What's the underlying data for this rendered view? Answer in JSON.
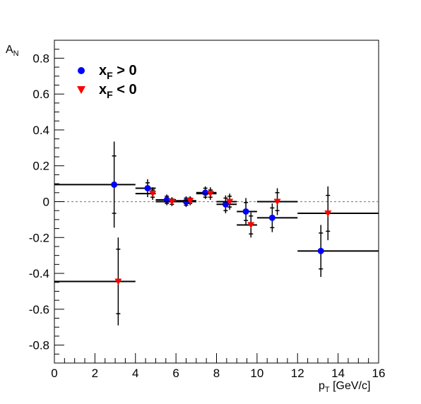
{
  "chart_data": {
    "type": "scatter",
    "title": "",
    "xlabel": {
      "main": "p",
      "sub": "T",
      "unit": " [GeV/c]"
    },
    "ylabel": {
      "main": "A",
      "sub": "N"
    },
    "xlim": [
      0,
      16
    ],
    "ylim": [
      -0.9,
      0.9
    ],
    "xticks": [
      0,
      2,
      4,
      6,
      8,
      10,
      12,
      14,
      16
    ],
    "xtick_labels": [
      "0",
      "2",
      "4",
      "6",
      "8",
      "10",
      "12",
      "14",
      "16"
    ],
    "yticks": [
      -0.8,
      -0.6,
      -0.4,
      -0.2,
      0,
      0.2,
      0.4,
      0.6,
      0.8
    ],
    "ytick_labels": [
      "-0.8",
      "-0.6",
      "-0.4",
      "-0.2",
      "0",
      "0.2",
      "0.4",
      "0.6",
      "0.8"
    ],
    "reference_line": {
      "y": 0,
      "style": "dotted",
      "color": "#888888"
    },
    "grid": false,
    "legend_position": "top-left",
    "series": [
      {
        "name": "x_F > 0",
        "legend": {
          "main": "x",
          "sub": "F",
          "rest": " > 0"
        },
        "marker": "circle",
        "color": "#0000ff",
        "points": [
          {
            "x": 2.95,
            "y": 0.095,
            "xlo": 0.0,
            "xhi": 4.0,
            "ystat": 0.16,
            "ysys": 0.24
          },
          {
            "x": 4.6,
            "y": 0.075,
            "xlo": 4.0,
            "xhi": 5.0,
            "ystat": 0.03,
            "ysys": 0.05
          },
          {
            "x": 5.55,
            "y": 0.01,
            "xlo": 5.0,
            "xhi": 6.0,
            "ystat": 0.02,
            "ysys": 0.03
          },
          {
            "x": 6.5,
            "y": 0.0,
            "xlo": 6.0,
            "xhi": 7.0,
            "ystat": 0.02,
            "ysys": 0.03
          },
          {
            "x": 7.45,
            "y": 0.05,
            "xlo": 7.0,
            "xhi": 8.0,
            "ystat": 0.025,
            "ysys": 0.035
          },
          {
            "x": 8.45,
            "y": -0.015,
            "xlo": 8.0,
            "xhi": 9.0,
            "ystat": 0.035,
            "ysys": 0.05
          },
          {
            "x": 9.45,
            "y": -0.055,
            "xlo": 9.0,
            "xhi": 10.0,
            "ystat": 0.05,
            "ysys": 0.075
          },
          {
            "x": 10.75,
            "y": -0.09,
            "xlo": 10.0,
            "xhi": 12.0,
            "ystat": 0.055,
            "ysys": 0.08
          },
          {
            "x": 13.15,
            "y": -0.275,
            "xlo": 12.0,
            "xhi": 16.0,
            "ystat": 0.1,
            "ysys": 0.145
          }
        ]
      },
      {
        "name": "x_F < 0",
        "legend": {
          "main": "x",
          "sub": "F",
          "rest": " < 0"
        },
        "marker": "triangle-down",
        "color": "#ff0000",
        "points": [
          {
            "x": 3.15,
            "y": -0.445,
            "xlo": 0.0,
            "xhi": 4.0,
            "ystat": 0.18,
            "ysys": 0.245
          },
          {
            "x": 4.85,
            "y": 0.045,
            "xlo": 4.0,
            "xhi": 5.0,
            "ystat": 0.02,
            "ysys": 0.035
          },
          {
            "x": 5.8,
            "y": 0.0,
            "xlo": 5.0,
            "xhi": 6.0,
            "ystat": 0.015,
            "ysys": 0.025
          },
          {
            "x": 6.7,
            "y": 0.005,
            "xlo": 6.0,
            "xhi": 7.0,
            "ystat": 0.015,
            "ysys": 0.025
          },
          {
            "x": 7.7,
            "y": 0.045,
            "xlo": 7.0,
            "xhi": 8.0,
            "ystat": 0.02,
            "ysys": 0.035
          },
          {
            "x": 8.65,
            "y": 0.0,
            "xlo": 8.0,
            "xhi": 9.0,
            "ystat": 0.03,
            "ysys": 0.045
          },
          {
            "x": 9.7,
            "y": -0.13,
            "xlo": 9.0,
            "xhi": 10.0,
            "ystat": 0.05,
            "ysys": 0.07
          },
          {
            "x": 11.0,
            "y": 0.0,
            "xlo": 10.0,
            "xhi": 12.0,
            "ystat": 0.05,
            "ysys": 0.075
          },
          {
            "x": 13.5,
            "y": -0.065,
            "xlo": 12.0,
            "xhi": 16.0,
            "ystat": 0.1,
            "ysys": 0.15
          }
        ]
      }
    ]
  }
}
